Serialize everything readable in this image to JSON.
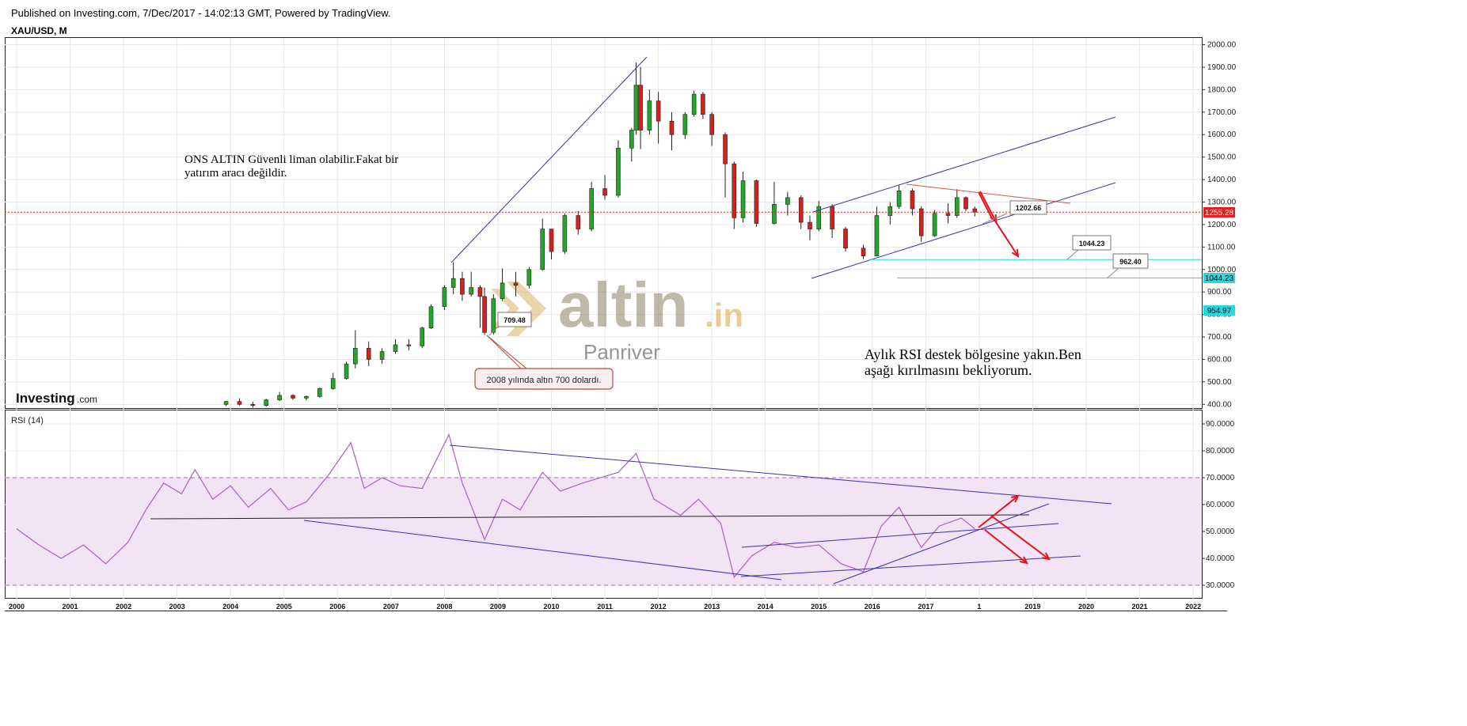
{
  "header": {
    "published": "Published on Investing.com, 7/Dec/2017 - 14:02:13 GMT, Powered by TradingView.",
    "symbol": "XAU/USD, M"
  },
  "branding": {
    "investing_logo": "Investing",
    "investing_logo_suffix": ".com",
    "watermark_main": "altin",
    "watermark_suffix": ".in",
    "watermark_sub": "Panriver"
  },
  "annotations": {
    "note_top": [
      "ONS ALTIN Güvenli liman olabilir.Fakat bir",
      "yatırım aracı değildir."
    ],
    "note_bottom": [
      "Aylık RSI destek bölgesine yakın.Ben",
      "aşağı kırılmasını bekliyorum."
    ],
    "callout_2008": "2008 yılında altın 700 dolardı.",
    "label_low": "709.48",
    "label_target1": "1202.66",
    "label_target2": "1044.23",
    "label_target3": "962.40"
  },
  "colors": {
    "bull": "#22a829",
    "bear": "#d5201e",
    "trendline": "#3a32a8",
    "rsi_line": "#b05cc8",
    "rsi_band": "#f2e4f4",
    "cyan": "#27d8e0",
    "current_price": "#e11f1f",
    "arrow": "#e2141c"
  },
  "chart_data": [
    {
      "type": "candlestick",
      "title": "XAU/USD, M",
      "y_axis_ticks": [
        "400.00",
        "500.00",
        "600.00",
        "700.00",
        "800.00",
        "900.00",
        "1000.00",
        "1100.00",
        "1200.00",
        "1300.00",
        "1400.00",
        "1500.00",
        "1600.00",
        "1700.00",
        "1800.00",
        "1900.00",
        "2000.00"
      ],
      "ylim": [
        380,
        2030
      ],
      "x_axis_ticks": [
        "2000",
        "2001",
        "2002",
        "2003",
        "2004",
        "2005",
        "2006",
        "2007",
        "2008",
        "2009",
        "2010",
        "2011",
        "2012",
        "2013",
        "2014",
        "2015",
        "2016",
        "2017",
        "1",
        "2019",
        "2020",
        "2021",
        "2022"
      ],
      "current_price_label": "1255.28",
      "cyan_level_labels": [
        "1044.23",
        "954.97"
      ],
      "grid": true,
      "candles": [
        {
          "date": "2003-12",
          "o": 400,
          "h": 415,
          "l": 393,
          "c": 413
        },
        {
          "date": "2004-03",
          "o": 413,
          "h": 427,
          "l": 395,
          "c": 400
        },
        {
          "date": "2004-06",
          "o": 400,
          "h": 412,
          "l": 385,
          "c": 395
        },
        {
          "date": "2004-09",
          "o": 395,
          "h": 425,
          "l": 390,
          "c": 420
        },
        {
          "date": "2004-12",
          "o": 420,
          "h": 455,
          "l": 415,
          "c": 440
        },
        {
          "date": "2005-03",
          "o": 440,
          "h": 445,
          "l": 420,
          "c": 428
        },
        {
          "date": "2005-06",
          "o": 428,
          "h": 440,
          "l": 418,
          "c": 435
        },
        {
          "date": "2005-09",
          "o": 435,
          "h": 475,
          "l": 430,
          "c": 470
        },
        {
          "date": "2005-12",
          "o": 470,
          "h": 540,
          "l": 465,
          "c": 515
        },
        {
          "date": "2006-03",
          "o": 515,
          "h": 590,
          "l": 510,
          "c": 580
        },
        {
          "date": "2006-05",
          "o": 580,
          "h": 730,
          "l": 560,
          "c": 650
        },
        {
          "date": "2006-08",
          "o": 650,
          "h": 680,
          "l": 570,
          "c": 600
        },
        {
          "date": "2006-11",
          "o": 600,
          "h": 650,
          "l": 580,
          "c": 635
        },
        {
          "date": "2007-02",
          "o": 635,
          "h": 690,
          "l": 625,
          "c": 665
        },
        {
          "date": "2007-05",
          "o": 665,
          "h": 690,
          "l": 640,
          "c": 660
        },
        {
          "date": "2007-08",
          "o": 660,
          "h": 745,
          "l": 650,
          "c": 740
        },
        {
          "date": "2007-10",
          "o": 740,
          "h": 845,
          "l": 735,
          "c": 835
        },
        {
          "date": "2008-01",
          "o": 835,
          "h": 930,
          "l": 820,
          "c": 920
        },
        {
          "date": "2008-03",
          "o": 920,
          "h": 1033,
          "l": 890,
          "c": 960
        },
        {
          "date": "2008-05",
          "o": 960,
          "h": 990,
          "l": 860,
          "c": 890
        },
        {
          "date": "2008-07",
          "o": 890,
          "h": 990,
          "l": 880,
          "c": 920
        },
        {
          "date": "2008-09",
          "o": 920,
          "h": 930,
          "l": 740,
          "c": 880
        },
        {
          "date": "2008-10",
          "o": 880,
          "h": 920,
          "l": 709,
          "c": 720
        },
        {
          "date": "2008-12",
          "o": 720,
          "h": 890,
          "l": 710,
          "c": 870
        },
        {
          "date": "2009-02",
          "o": 870,
          "h": 1005,
          "l": 860,
          "c": 940
        },
        {
          "date": "2009-05",
          "o": 940,
          "h": 990,
          "l": 880,
          "c": 930
        },
        {
          "date": "2009-08",
          "o": 930,
          "h": 1010,
          "l": 915,
          "c": 1000
        },
        {
          "date": "2009-11",
          "o": 1000,
          "h": 1226,
          "l": 995,
          "c": 1180
        },
        {
          "date": "2010-01",
          "o": 1180,
          "h": 1180,
          "l": 1045,
          "c": 1080
        },
        {
          "date": "2010-04",
          "o": 1080,
          "h": 1250,
          "l": 1070,
          "c": 1240
        },
        {
          "date": "2010-07",
          "o": 1240,
          "h": 1260,
          "l": 1155,
          "c": 1180
        },
        {
          "date": "2010-10",
          "o": 1180,
          "h": 1390,
          "l": 1170,
          "c": 1360
        },
        {
          "date": "2011-01",
          "o": 1360,
          "h": 1420,
          "l": 1310,
          "c": 1330
        },
        {
          "date": "2011-04",
          "o": 1330,
          "h": 1575,
          "l": 1320,
          "c": 1540
        },
        {
          "date": "2011-07",
          "o": 1540,
          "h": 1630,
          "l": 1480,
          "c": 1620
        },
        {
          "date": "2011-08",
          "o": 1620,
          "h": 1920,
          "l": 1600,
          "c": 1820
        },
        {
          "date": "2011-09",
          "o": 1820,
          "h": 1900,
          "l": 1535,
          "c": 1620
        },
        {
          "date": "2011-11",
          "o": 1620,
          "h": 1800,
          "l": 1600,
          "c": 1750
        },
        {
          "date": "2012-01",
          "o": 1750,
          "h": 1790,
          "l": 1560,
          "c": 1660
        },
        {
          "date": "2012-04",
          "o": 1660,
          "h": 1700,
          "l": 1530,
          "c": 1600
        },
        {
          "date": "2012-07",
          "o": 1600,
          "h": 1700,
          "l": 1580,
          "c": 1690
        },
        {
          "date": "2012-09",
          "o": 1690,
          "h": 1796,
          "l": 1680,
          "c": 1780
        },
        {
          "date": "2012-11",
          "o": 1780,
          "h": 1790,
          "l": 1670,
          "c": 1690
        },
        {
          "date": "2013-01",
          "o": 1690,
          "h": 1700,
          "l": 1550,
          "c": 1600
        },
        {
          "date": "2013-04",
          "o": 1600,
          "h": 1610,
          "l": 1320,
          "c": 1470
        },
        {
          "date": "2013-06",
          "o": 1470,
          "h": 1480,
          "l": 1180,
          "c": 1230
        },
        {
          "date": "2013-08",
          "o": 1230,
          "h": 1435,
          "l": 1210,
          "c": 1395
        },
        {
          "date": "2013-11",
          "o": 1395,
          "h": 1400,
          "l": 1190,
          "c": 1205
        },
        {
          "date": "2014-03",
          "o": 1205,
          "h": 1390,
          "l": 1200,
          "c": 1290
        },
        {
          "date": "2014-06",
          "o": 1290,
          "h": 1345,
          "l": 1240,
          "c": 1320
        },
        {
          "date": "2014-09",
          "o": 1320,
          "h": 1330,
          "l": 1180,
          "c": 1210
        },
        {
          "date": "2014-11",
          "o": 1210,
          "h": 1240,
          "l": 1130,
          "c": 1180
        },
        {
          "date": "2015-01",
          "o": 1180,
          "h": 1305,
          "l": 1170,
          "c": 1280
        },
        {
          "date": "2015-04",
          "o": 1280,
          "h": 1290,
          "l": 1140,
          "c": 1180
        },
        {
          "date": "2015-07",
          "o": 1180,
          "h": 1190,
          "l": 1080,
          "c": 1095
        },
        {
          "date": "2015-11",
          "o": 1095,
          "h": 1110,
          "l": 1046,
          "c": 1060
        },
        {
          "date": "2016-02",
          "o": 1060,
          "h": 1280,
          "l": 1060,
          "c": 1240
        },
        {
          "date": "2016-05",
          "o": 1240,
          "h": 1300,
          "l": 1200,
          "c": 1280
        },
        {
          "date": "2016-07",
          "o": 1280,
          "h": 1375,
          "l": 1270,
          "c": 1350
        },
        {
          "date": "2016-10",
          "o": 1350,
          "h": 1360,
          "l": 1240,
          "c": 1270
        },
        {
          "date": "2016-12",
          "o": 1270,
          "h": 1280,
          "l": 1123,
          "c": 1150
        },
        {
          "date": "2017-03",
          "o": 1150,
          "h": 1265,
          "l": 1145,
          "c": 1250
        },
        {
          "date": "2017-06",
          "o": 1250,
          "h": 1295,
          "l": 1205,
          "c": 1240
        },
        {
          "date": "2017-08",
          "o": 1240,
          "h": 1357,
          "l": 1230,
          "c": 1320
        },
        {
          "date": "2017-10",
          "o": 1320,
          "h": 1325,
          "l": 1260,
          "c": 1270
        },
        {
          "date": "2017-12",
          "o": 1270,
          "h": 1280,
          "l": 1236,
          "c": 1255
        }
      ]
    },
    {
      "type": "line",
      "title": "RSI (14)",
      "y_axis_ticks": [
        "30.0000",
        "40.0000",
        "50.0000",
        "60.0000",
        "70.0000",
        "80.0000",
        "90.0000"
      ],
      "ylim": [
        25,
        95
      ],
      "band": [
        30,
        70
      ],
      "series": [
        {
          "values": [
            {
              "x": "2000-01",
              "y": 51
            },
            {
              "x": "2000-06",
              "y": 45
            },
            {
              "x": "2000-11",
              "y": 40
            },
            {
              "x": "2001-04",
              "y": 45
            },
            {
              "x": "2001-09",
              "y": 38
            },
            {
              "x": "2002-02",
              "y": 46
            },
            {
              "x": "2002-06",
              "y": 58
            },
            {
              "x": "2002-10",
              "y": 68
            },
            {
              "x": "2003-02",
              "y": 64
            },
            {
              "x": "2003-05",
              "y": 73
            },
            {
              "x": "2003-09",
              "y": 62
            },
            {
              "x": "2004-01",
              "y": 67
            },
            {
              "x": "2004-05",
              "y": 59
            },
            {
              "x": "2004-10",
              "y": 66
            },
            {
              "x": "2005-02",
              "y": 58
            },
            {
              "x": "2005-06",
              "y": 61
            },
            {
              "x": "2005-11",
              "y": 71
            },
            {
              "x": "2006-04",
              "y": 83
            },
            {
              "x": "2006-07",
              "y": 66
            },
            {
              "x": "2006-11",
              "y": 70
            },
            {
              "x": "2007-03",
              "y": 67
            },
            {
              "x": "2007-08",
              "y": 66
            },
            {
              "x": "2008-02",
              "y": 86
            },
            {
              "x": "2008-05",
              "y": 68
            },
            {
              "x": "2008-10",
              "y": 47
            },
            {
              "x": "2009-02",
              "y": 62
            },
            {
              "x": "2009-06",
              "y": 58
            },
            {
              "x": "2009-11",
              "y": 72
            },
            {
              "x": "2010-03",
              "y": 65
            },
            {
              "x": "2010-08",
              "y": 68
            },
            {
              "x": "2011-04",
              "y": 72
            },
            {
              "x": "2011-08",
              "y": 79
            },
            {
              "x": "2011-12",
              "y": 62
            },
            {
              "x": "2012-06",
              "y": 56
            },
            {
              "x": "2012-10",
              "y": 62
            },
            {
              "x": "2013-03",
              "y": 53
            },
            {
              "x": "2013-06",
              "y": 33
            },
            {
              "x": "2013-10",
              "y": 41
            },
            {
              "x": "2014-03",
              "y": 46
            },
            {
              "x": "2014-08",
              "y": 44
            },
            {
              "x": "2015-01",
              "y": 45
            },
            {
              "x": "2015-06",
              "y": 38
            },
            {
              "x": "2015-11",
              "y": 35
            },
            {
              "x": "2016-03",
              "y": 52
            },
            {
              "x": "2016-07",
              "y": 59
            },
            {
              "x": "2016-12",
              "y": 44
            },
            {
              "x": "2017-04",
              "y": 52
            },
            {
              "x": "2017-09",
              "y": 55
            },
            {
              "x": "2017-12",
              "y": 51
            }
          ]
        }
      ]
    }
  ]
}
